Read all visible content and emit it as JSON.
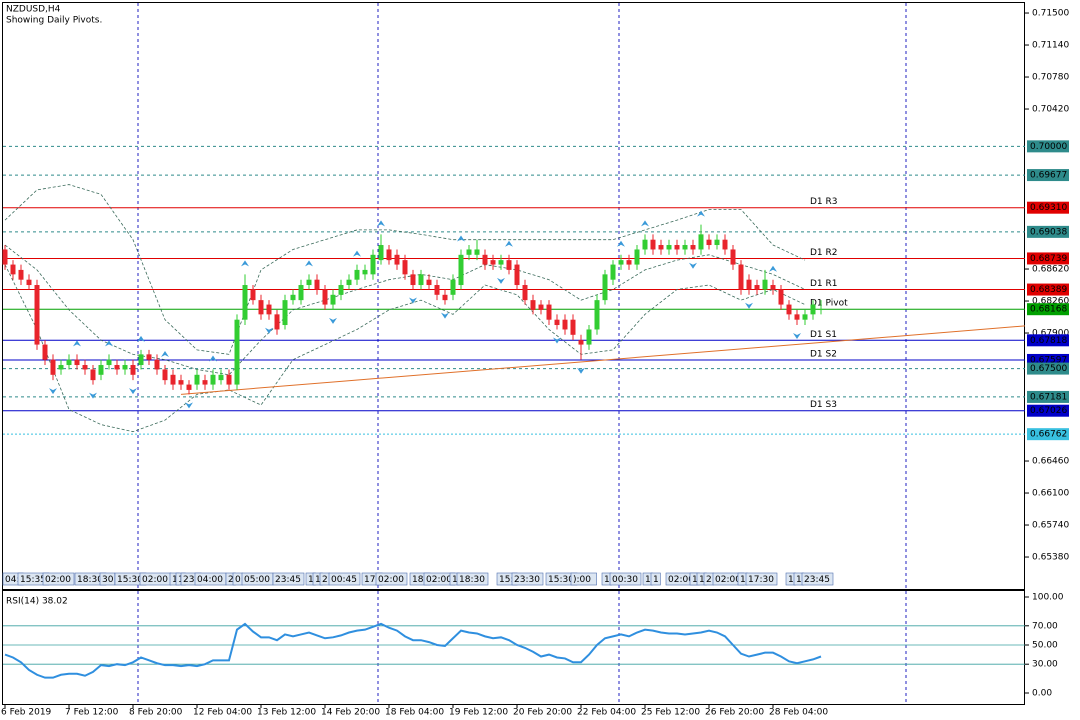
{
  "header": {
    "symbol": "NZDUSD,H4",
    "note": "Showing Daily Pivots."
  },
  "chart_data": [
    {
      "type": "candlestick",
      "categories": [
        "6 Feb 2019",
        null,
        null,
        null,
        null,
        null,
        null,
        null,
        "7 Feb 12:00",
        null,
        null,
        null,
        null,
        null,
        null,
        null,
        "8 Feb 20:00",
        null,
        null,
        null,
        null,
        null,
        null,
        null,
        "12 Feb 04:00",
        null,
        null,
        null,
        null,
        null,
        null,
        null,
        "13 Feb 12:00",
        null,
        null,
        null,
        null,
        null,
        null,
        null,
        "14 Feb 20:00",
        null,
        null,
        null,
        null,
        null,
        null,
        null,
        "18 Feb 04:00",
        null,
        null,
        null,
        null,
        null,
        null,
        null,
        "19 Feb 12:00",
        null,
        null,
        null,
        null,
        null,
        null,
        null,
        "20 Feb 20:00",
        null,
        null,
        null,
        null,
        null,
        null,
        null,
        "22 Feb 04:00",
        null,
        null,
        null,
        null,
        null,
        null,
        null,
        "25 Feb 12:00",
        null,
        null,
        null,
        null,
        null,
        null,
        null,
        "26 Feb 20:00",
        null,
        null,
        null,
        null,
        null,
        null,
        null,
        "28 Feb 04:00",
        null,
        null,
        null,
        null,
        null,
        null
      ],
      "open": [
        0.6884,
        0.6867,
        0.6861,
        0.685,
        0.6844,
        0.6777,
        0.676,
        0.6749,
        0.6754,
        0.676,
        0.6754,
        0.6749,
        0.6743,
        0.6754,
        0.6754,
        0.6749,
        0.6754,
        0.6754,
        0.6766,
        0.676,
        0.6749,
        0.6743,
        0.6737,
        0.6732,
        0.6732,
        0.6737,
        0.6732,
        0.6737,
        0.6743,
        0.6732,
        0.6805,
        0.6839,
        0.6827,
        0.6822,
        0.6811,
        0.6799,
        0.6827,
        0.6827,
        0.6844,
        0.685,
        0.6839,
        0.6822,
        0.6833,
        0.6844,
        0.685,
        0.6856,
        0.6856,
        0.6872,
        0.6884,
        0.6878,
        0.6872,
        0.6856,
        0.6844,
        0.685,
        0.6844,
        0.6833,
        0.6833,
        0.6844,
        0.6878,
        0.6878,
        0.6878,
        0.6872,
        0.6867,
        0.6872,
        0.6867,
        0.6844,
        0.6827,
        0.6822,
        0.6822,
        0.6805,
        0.6805,
        0.6805,
        0.6782,
        0.6777,
        0.6794,
        0.6827,
        0.685,
        0.6867,
        0.6872,
        0.6867,
        0.6884,
        0.6895,
        0.6889,
        0.6884,
        0.6889,
        0.6884,
        0.6889,
        0.6884,
        0.6895,
        0.6889,
        0.6895,
        0.6884,
        0.6867,
        0.685,
        0.6844,
        0.6839,
        0.6844,
        0.6839,
        0.6822,
        0.6811,
        0.6805,
        0.6811,
        0.6816
      ],
      "high": [
        0.6889,
        0.6872,
        0.6867,
        0.6856,
        0.685,
        0.6782,
        0.6766,
        0.676,
        0.6766,
        0.6766,
        0.676,
        0.6754,
        0.676,
        0.6766,
        0.676,
        0.676,
        0.676,
        0.6771,
        0.6771,
        0.6766,
        0.6754,
        0.6749,
        0.6743,
        0.6737,
        0.6749,
        0.6743,
        0.6749,
        0.6749,
        0.6749,
        0.6811,
        0.6856,
        0.6844,
        0.6833,
        0.6827,
        0.6816,
        0.6833,
        0.6839,
        0.685,
        0.6856,
        0.6856,
        0.6844,
        0.6839,
        0.685,
        0.6856,
        0.6867,
        0.6867,
        0.6884,
        0.6901,
        0.6889,
        0.6884,
        0.6878,
        0.6861,
        0.6861,
        0.6856,
        0.685,
        0.6839,
        0.6856,
        0.6884,
        0.6889,
        0.6895,
        0.6884,
        0.6878,
        0.6878,
        0.6878,
        0.6872,
        0.685,
        0.6833,
        0.6827,
        0.6827,
        0.6811,
        0.6811,
        0.6811,
        0.6788,
        0.6799,
        0.6833,
        0.6861,
        0.6872,
        0.6878,
        0.6878,
        0.6889,
        0.6901,
        0.6901,
        0.6895,
        0.6895,
        0.6895,
        0.6895,
        0.6895,
        0.6912,
        0.6901,
        0.6901,
        0.6901,
        0.6889,
        0.6872,
        0.6856,
        0.685,
        0.6861,
        0.685,
        0.6844,
        0.6827,
        0.6816,
        0.6816,
        0.6827,
        0.6827
      ],
      "low": [
        0.6861,
        0.685,
        0.6844,
        0.6839,
        0.6771,
        0.6754,
        0.6737,
        0.6743,
        0.6749,
        0.6749,
        0.6743,
        0.6732,
        0.6737,
        0.6749,
        0.6743,
        0.6743,
        0.6737,
        0.6749,
        0.6754,
        0.6743,
        0.6732,
        0.6726,
        0.6726,
        0.6721,
        0.6726,
        0.6726,
        0.6726,
        0.6732,
        0.6726,
        0.6726,
        0.6799,
        0.6822,
        0.6805,
        0.6805,
        0.6788,
        0.6794,
        0.6822,
        0.6822,
        0.6839,
        0.6833,
        0.6816,
        0.6816,
        0.6827,
        0.6839,
        0.6844,
        0.685,
        0.685,
        0.6867,
        0.6867,
        0.6861,
        0.685,
        0.6839,
        0.6839,
        0.6839,
        0.6827,
        0.6822,
        0.6827,
        0.6839,
        0.6872,
        0.6872,
        0.6861,
        0.6861,
        0.6861,
        0.6856,
        0.6839,
        0.6822,
        0.6811,
        0.6811,
        0.6799,
        0.6794,
        0.6788,
        0.6782,
        0.676,
        0.6771,
        0.6788,
        0.6822,
        0.6844,
        0.6861,
        0.6861,
        0.6861,
        0.6878,
        0.6878,
        0.6878,
        0.6878,
        0.6878,
        0.6878,
        0.6878,
        0.6878,
        0.6884,
        0.6884,
        0.6878,
        0.6861,
        0.6833,
        0.6833,
        0.6833,
        0.6833,
        0.6833,
        0.6816,
        0.6805,
        0.6799,
        0.6799,
        0.6805,
        0.6811
      ],
      "close": [
        0.6867,
        0.6856,
        0.685,
        0.6844,
        0.6777,
        0.676,
        0.6743,
        0.6754,
        0.676,
        0.6754,
        0.6749,
        0.6737,
        0.6754,
        0.676,
        0.6749,
        0.6754,
        0.6743,
        0.6766,
        0.676,
        0.6749,
        0.6737,
        0.6732,
        0.6732,
        0.6726,
        0.6743,
        0.6732,
        0.6743,
        0.6743,
        0.6732,
        0.6805,
        0.6844,
        0.6827,
        0.6811,
        0.6811,
        0.6794,
        0.6827,
        0.6833,
        0.6844,
        0.685,
        0.6839,
        0.6822,
        0.6833,
        0.6844,
        0.685,
        0.6861,
        0.6861,
        0.6878,
        0.6889,
        0.6872,
        0.6867,
        0.6856,
        0.6844,
        0.6856,
        0.6844,
        0.6833,
        0.6827,
        0.685,
        0.6878,
        0.6884,
        0.6884,
        0.6867,
        0.6867,
        0.6872,
        0.6861,
        0.6844,
        0.6827,
        0.6816,
        0.6816,
        0.6805,
        0.6799,
        0.6794,
        0.6788,
        0.6777,
        0.6794,
        0.6827,
        0.6856,
        0.6867,
        0.6872,
        0.6867,
        0.6884,
        0.6895,
        0.6884,
        0.6884,
        0.6889,
        0.6884,
        0.6889,
        0.6884,
        0.6901,
        0.6889,
        0.6895,
        0.6884,
        0.6867,
        0.6839,
        0.6839,
        0.6839,
        0.685,
        0.6839,
        0.6822,
        0.6811,
        0.6805,
        0.6811,
        0.6822,
        0.6817
      ],
      "up_color": "#32cd32",
      "down_color": "#e8242c",
      "ylim": [
        0.65009,
        0.71624
      ],
      "yticks": [
        {
          "value": 0.715,
          "label": "0.71500"
        },
        {
          "value": 0.7114,
          "label": "0.71140"
        },
        {
          "value": 0.7078,
          "label": "0.70780"
        },
        {
          "value": 0.7042,
          "label": "0.70420"
        },
        {
          "value": 0.6862,
          "label": "0.68620"
        },
        {
          "value": 0.6826,
          "label": "0.68260"
        },
        {
          "value": 0.679,
          "label": "0.67900"
        },
        {
          "value": 0.6646,
          "label": "0.66460"
        },
        {
          "value": 0.661,
          "label": "0.66100"
        },
        {
          "value": 0.6574,
          "label": "0.65740"
        },
        {
          "value": 0.6538,
          "label": "0.65380"
        }
      ],
      "levels": [
        {
          "value": 0.7,
          "label": "0.70000",
          "color": "#2e8b8b",
          "style": "dashed"
        },
        {
          "value": 0.69677,
          "label": "0.69677",
          "color": "#2e8b8b",
          "style": "dashed"
        },
        {
          "name": "D1 R3",
          "value": 0.6931,
          "label": "0.69310",
          "color": "#e00000",
          "style": "solid"
        },
        {
          "value": 0.69038,
          "label": "0.69038",
          "color": "#2e8b8b",
          "style": "dashed"
        },
        {
          "name": "D1 R2",
          "value": 0.68739,
          "label": "0.68739",
          "color": "#e00000",
          "style": "solid"
        },
        {
          "name": "D1 R1",
          "value": 0.68389,
          "label": "0.68389",
          "color": "#e00000",
          "style": "solid"
        },
        {
          "name": "D1 Pivot",
          "value": 0.68168,
          "label": "0.68168",
          "color": "#00a000",
          "style": "solid"
        },
        {
          "name": "D1 S1",
          "value": 0.67818,
          "label": "0.67818",
          "color": "#0000c8",
          "style": "solid"
        },
        {
          "name": "D1 S2",
          "value": 0.67597,
          "label": "0.67597",
          "color": "#0000c8",
          "style": "solid"
        },
        {
          "value": 0.675,
          "label": "0.67500",
          "color": "#2e8b8b",
          "style": "dashed"
        },
        {
          "value": 0.67181,
          "label": "0.67181",
          "color": "#2e8b8b",
          "style": "dashed"
        },
        {
          "name": "D1 S3",
          "value": 0.67026,
          "label": "0.67026",
          "color": "#0000c8",
          "style": "solid"
        },
        {
          "value": 0.66762,
          "label": "0.66762",
          "color": "#38c0e0",
          "style": "dotted"
        }
      ],
      "bands": {
        "color": "#3a6a5a",
        "x": [
          0,
          4,
          8,
          12,
          16,
          20,
          24,
          28,
          32,
          36,
          40,
          44,
          48,
          52,
          56,
          60,
          64,
          68,
          72,
          76,
          80,
          84,
          88,
          92,
          96,
          100
        ],
        "upper": [
          0.6917,
          0.6951,
          0.6957,
          0.6946,
          0.6895,
          0.6805,
          0.6771,
          0.6766,
          0.6861,
          0.6884,
          0.6895,
          0.6906,
          0.6906,
          0.6901,
          0.6895,
          0.6895,
          0.6895,
          0.6895,
          0.6895,
          0.6895,
          0.6906,
          0.6917,
          0.6929,
          0.6929,
          0.6889,
          0.6872
        ],
        "mid": [
          0.6889,
          0.6861,
          0.6816,
          0.6782,
          0.6766,
          0.676,
          0.6749,
          0.6743,
          0.6782,
          0.6816,
          0.6827,
          0.6839,
          0.685,
          0.6856,
          0.685,
          0.6867,
          0.6861,
          0.685,
          0.6827,
          0.6839,
          0.6861,
          0.6872,
          0.6878,
          0.6867,
          0.6856,
          0.6839
        ],
        "lower": [
          0.6867,
          0.6794,
          0.6704,
          0.6687,
          0.6679,
          0.6692,
          0.6721,
          0.6726,
          0.6709,
          0.676,
          0.6777,
          0.6794,
          0.6816,
          0.6827,
          0.6811,
          0.6844,
          0.6833,
          0.6794,
          0.6766,
          0.6771,
          0.6811,
          0.6839,
          0.6844,
          0.6827,
          0.6839,
          0.6822
        ]
      },
      "trendline": {
        "x": [
          22,
          127.5
        ],
        "y": [
          0.6721,
          0.6798
        ],
        "color": "#e0702a"
      },
      "fractals_up": [
        9,
        13,
        17,
        20,
        26,
        30,
        38,
        44,
        47,
        57,
        63,
        77,
        80,
        87,
        96
      ],
      "fractals_down": [
        6,
        11,
        16,
        23,
        33,
        41,
        51,
        55,
        62,
        69,
        72,
        86,
        93,
        99
      ],
      "fractal_color": "#3a9ad9",
      "vgrid": [
        16.625,
        46.625,
        76.75,
        112.625
      ],
      "vgrid_color": "#2020c0",
      "event_labels": [
        "04:",
        "15:35",
        "02:00",
        "18:30",
        "30",
        "15:30",
        "02:00",
        "1",
        "1",
        "23:",
        "04:00",
        "2",
        "0",
        "05:00",
        "23:45",
        "1",
        "1",
        "2",
        "00:45",
        "17:",
        "02:00",
        "18:",
        "02:00",
        "1",
        "18:30",
        "15:",
        "23:30",
        "15:30",
        "):00",
        "1",
        "00:30",
        "1",
        "1",
        "02:00",
        "1",
        "1",
        "2",
        "02:00",
        "1",
        "17:30",
        "1",
        "1",
        "23:45"
      ]
    },
    {
      "type": "line",
      "title": "RSI(14) 38.02",
      "color": "#2f8fdf",
      "values": [
        40,
        37,
        32,
        24,
        19,
        16,
        16,
        19,
        20,
        20,
        18,
        22,
        29,
        28,
        30,
        29,
        32,
        37,
        34,
        31,
        29,
        29,
        28,
        29,
        28,
        30,
        34,
        34,
        34,
        66,
        72,
        64,
        58,
        58,
        55,
        61,
        59,
        61,
        63,
        60,
        57,
        58,
        60,
        63,
        65,
        66,
        69,
        72,
        68,
        65,
        59,
        55,
        55,
        53,
        50,
        49,
        57,
        65,
        63,
        62,
        59,
        57,
        58,
        55,
        50,
        47,
        43,
        38,
        40,
        37,
        36,
        32,
        32,
        40,
        50,
        57,
        59,
        61,
        59,
        63,
        66,
        65,
        63,
        62,
        62,
        61,
        62,
        63,
        65,
        63,
        59,
        50,
        41,
        38,
        40,
        42,
        42,
        38,
        33,
        31,
        33,
        35,
        38.02
      ],
      "ylim": [
        -12.5,
        106.25
      ],
      "yticks": [
        {
          "value": 100,
          "label": "100.00"
        },
        {
          "value": 70,
          "label": "70.00"
        },
        {
          "value": 50,
          "label": "50.00"
        },
        {
          "value": 30,
          "label": "30.00"
        },
        {
          "value": 0,
          "label": "0.00"
        }
      ],
      "hlines": [
        70,
        50,
        30
      ],
      "hline_color": "#3aa0a0"
    }
  ]
}
